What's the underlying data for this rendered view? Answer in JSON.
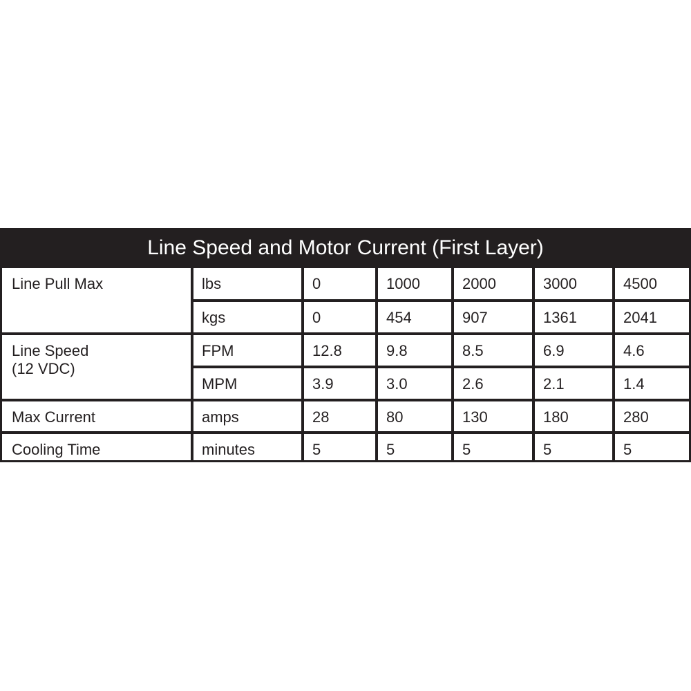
{
  "title": "Line Speed and Motor Current (First Layer)",
  "rows": [
    {
      "label": "Line Pull Max",
      "label2": "",
      "units": [
        "lbs",
        "kgs"
      ],
      "values": [
        [
          "0",
          "1000",
          "2000",
          "3000",
          "4500"
        ],
        [
          "0",
          "454",
          "907",
          "1361",
          "2041"
        ]
      ]
    },
    {
      "label": "Line Speed",
      "label2": "(12 VDC)",
      "units": [
        "FPM",
        "MPM"
      ],
      "values": [
        [
          "12.8",
          "9.8",
          "8.5",
          "6.9",
          "4.6"
        ],
        [
          "3.9",
          "3.0",
          "2.6",
          "2.1",
          "1.4"
        ]
      ]
    },
    {
      "label": "Max Current",
      "label2": "",
      "units": [
        "amps"
      ],
      "values": [
        [
          "28",
          "80",
          "130",
          "180",
          "280"
        ]
      ]
    },
    {
      "label": "Cooling Time",
      "label2": "",
      "units": [
        "minutes"
      ],
      "values": [
        [
          "5",
          "5",
          "5",
          "5",
          "5"
        ]
      ]
    }
  ]
}
